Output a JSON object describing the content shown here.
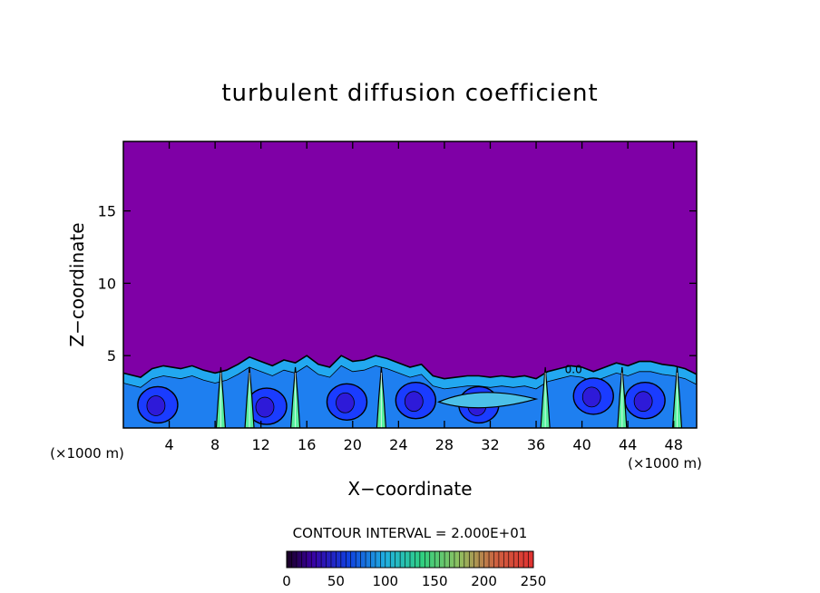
{
  "chart_data": {
    "type": "heatmap",
    "title": "turbulent diffusion coefficient",
    "xlabel": "X−coordinate",
    "ylabel": "Z−coordinate",
    "x_unit_left": "(×1000 m)",
    "x_unit_right": "(×1000 m)",
    "xlim": [
      0,
      50
    ],
    "ylim": [
      0,
      19.8
    ],
    "xticks": [
      4,
      8,
      12,
      16,
      20,
      24,
      28,
      32,
      36,
      40,
      44,
      48
    ],
    "yticks": [
      5,
      10,
      15
    ],
    "contour_interval_text": "CONTOUR INTERVAL = 2.000E+01",
    "colorbar": {
      "min": 0,
      "max": 250,
      "labels": [
        0,
        50,
        100,
        150,
        200,
        250
      ]
    },
    "background_value": 0,
    "colors": {
      "low": "#7f00a6",
      "mid_low": "#1a3cff",
      "mid": "#22a8f0",
      "mid_high": "#58f0a0",
      "high": "#e04020"
    },
    "boundary_layer": {
      "top_heights": [
        [
          0,
          3.8
        ],
        [
          1.5,
          3.5
        ],
        [
          2.5,
          4.1
        ],
        [
          3.5,
          4.3
        ],
        [
          5,
          4.1
        ],
        [
          6,
          4.3
        ],
        [
          7,
          4.0
        ],
        [
          8,
          3.8
        ],
        [
          9,
          4.0
        ],
        [
          10,
          4.4
        ],
        [
          11,
          4.9
        ],
        [
          12,
          4.6
        ],
        [
          13,
          4.3
        ],
        [
          14,
          4.7
        ],
        [
          15,
          4.5
        ],
        [
          16,
          5.0
        ],
        [
          17,
          4.4
        ],
        [
          18,
          4.2
        ],
        [
          19,
          5.0
        ],
        [
          20,
          4.6
        ],
        [
          21,
          4.7
        ],
        [
          22,
          5.0
        ],
        [
          23,
          4.8
        ],
        [
          24,
          4.5
        ],
        [
          25,
          4.2
        ],
        [
          26,
          4.4
        ],
        [
          27,
          3.6
        ],
        [
          28,
          3.4
        ],
        [
          29,
          3.5
        ],
        [
          30,
          3.6
        ],
        [
          31,
          3.6
        ],
        [
          32,
          3.5
        ],
        [
          33,
          3.6
        ],
        [
          34,
          3.5
        ],
        [
          35,
          3.6
        ],
        [
          36,
          3.4
        ],
        [
          37,
          3.9
        ],
        [
          38,
          4.1
        ],
        [
          39,
          4.3
        ],
        [
          40,
          4.2
        ],
        [
          41,
          3.9
        ],
        [
          42,
          4.2
        ],
        [
          43,
          4.5
        ],
        [
          44,
          4.3
        ],
        [
          45,
          4.6
        ],
        [
          46,
          4.6
        ],
        [
          47,
          4.4
        ],
        [
          48,
          4.3
        ],
        [
          49,
          4.1
        ],
        [
          50,
          3.7
        ]
      ],
      "cells": [
        {
          "x": 3,
          "z": 1.6,
          "value": 20
        },
        {
          "x": 12.5,
          "z": 1.5,
          "value": 20
        },
        {
          "x": 19.5,
          "z": 1.8,
          "value": 20
        },
        {
          "x": 25.5,
          "z": 1.9,
          "value": 20
        },
        {
          "x": 31,
          "z": 1.6,
          "value": 20
        },
        {
          "x": 41,
          "z": 2.2,
          "value": 20
        },
        {
          "x": 45.5,
          "z": 1.9,
          "value": 20
        }
      ],
      "plumes": [
        {
          "x": 8.5,
          "value": 120
        },
        {
          "x": 11,
          "value": 130
        },
        {
          "x": 15,
          "value": 110
        },
        {
          "x": 22.5,
          "value": 140
        },
        {
          "x": 36.8,
          "value": 110
        },
        {
          "x": 43.5,
          "value": 120
        },
        {
          "x": 48.3,
          "value": 100
        }
      ],
      "labels": [
        {
          "x": 38.5,
          "z": 3.8,
          "text": "0.0"
        }
      ]
    }
  }
}
